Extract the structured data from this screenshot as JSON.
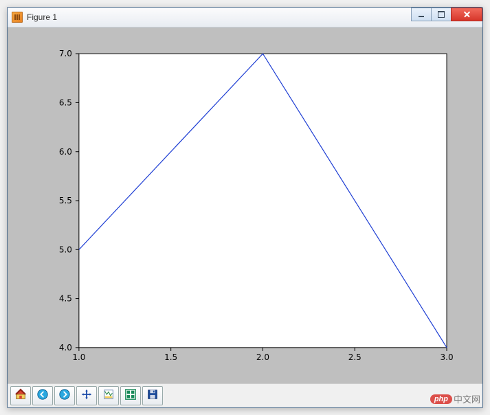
{
  "window": {
    "title": "Figure 1",
    "title_color": "#333333",
    "frame_color": "#4a6a8a",
    "client_bg": "#bfbfbf"
  },
  "chart": {
    "type": "line",
    "x_values": [
      1.0,
      2.0,
      3.0
    ],
    "y_values": [
      5.0,
      7.0,
      4.0
    ],
    "line_color": "#1f3fd4",
    "line_width": 1.2,
    "background_color": "#ffffff",
    "axes_border_color": "#000000",
    "tick_fontsize": 12,
    "tick_font": "DejaVu Sans, Arial, sans-serif",
    "xlim": [
      1.0,
      3.0
    ],
    "ylim": [
      4.0,
      7.0
    ],
    "xticks": [
      1.0,
      1.5,
      2.0,
      2.5,
      3.0
    ],
    "xtick_labels": [
      "1.0",
      "1.5",
      "2.0",
      "2.5",
      "3.0"
    ],
    "yticks": [
      4.0,
      4.5,
      5.0,
      5.5,
      6.0,
      6.5,
      7.0
    ],
    "ytick_labels": [
      "4.0",
      "4.5",
      "5.0",
      "5.5",
      "6.0",
      "6.5",
      "7.0"
    ],
    "grid": false
  },
  "toolbar": {
    "buttons": [
      {
        "name": "home-icon",
        "tooltip": "Home"
      },
      {
        "name": "back-icon",
        "tooltip": "Back"
      },
      {
        "name": "forward-icon",
        "tooltip": "Forward"
      },
      {
        "name": "pan-icon",
        "tooltip": "Pan"
      },
      {
        "name": "zoom-icon",
        "tooltip": "Zoom"
      },
      {
        "name": "subplots-icon",
        "tooltip": "Configure subplots"
      },
      {
        "name": "save-icon",
        "tooltip": "Save figure"
      }
    ]
  },
  "watermark": {
    "badge": "php",
    "text": "中文网"
  }
}
